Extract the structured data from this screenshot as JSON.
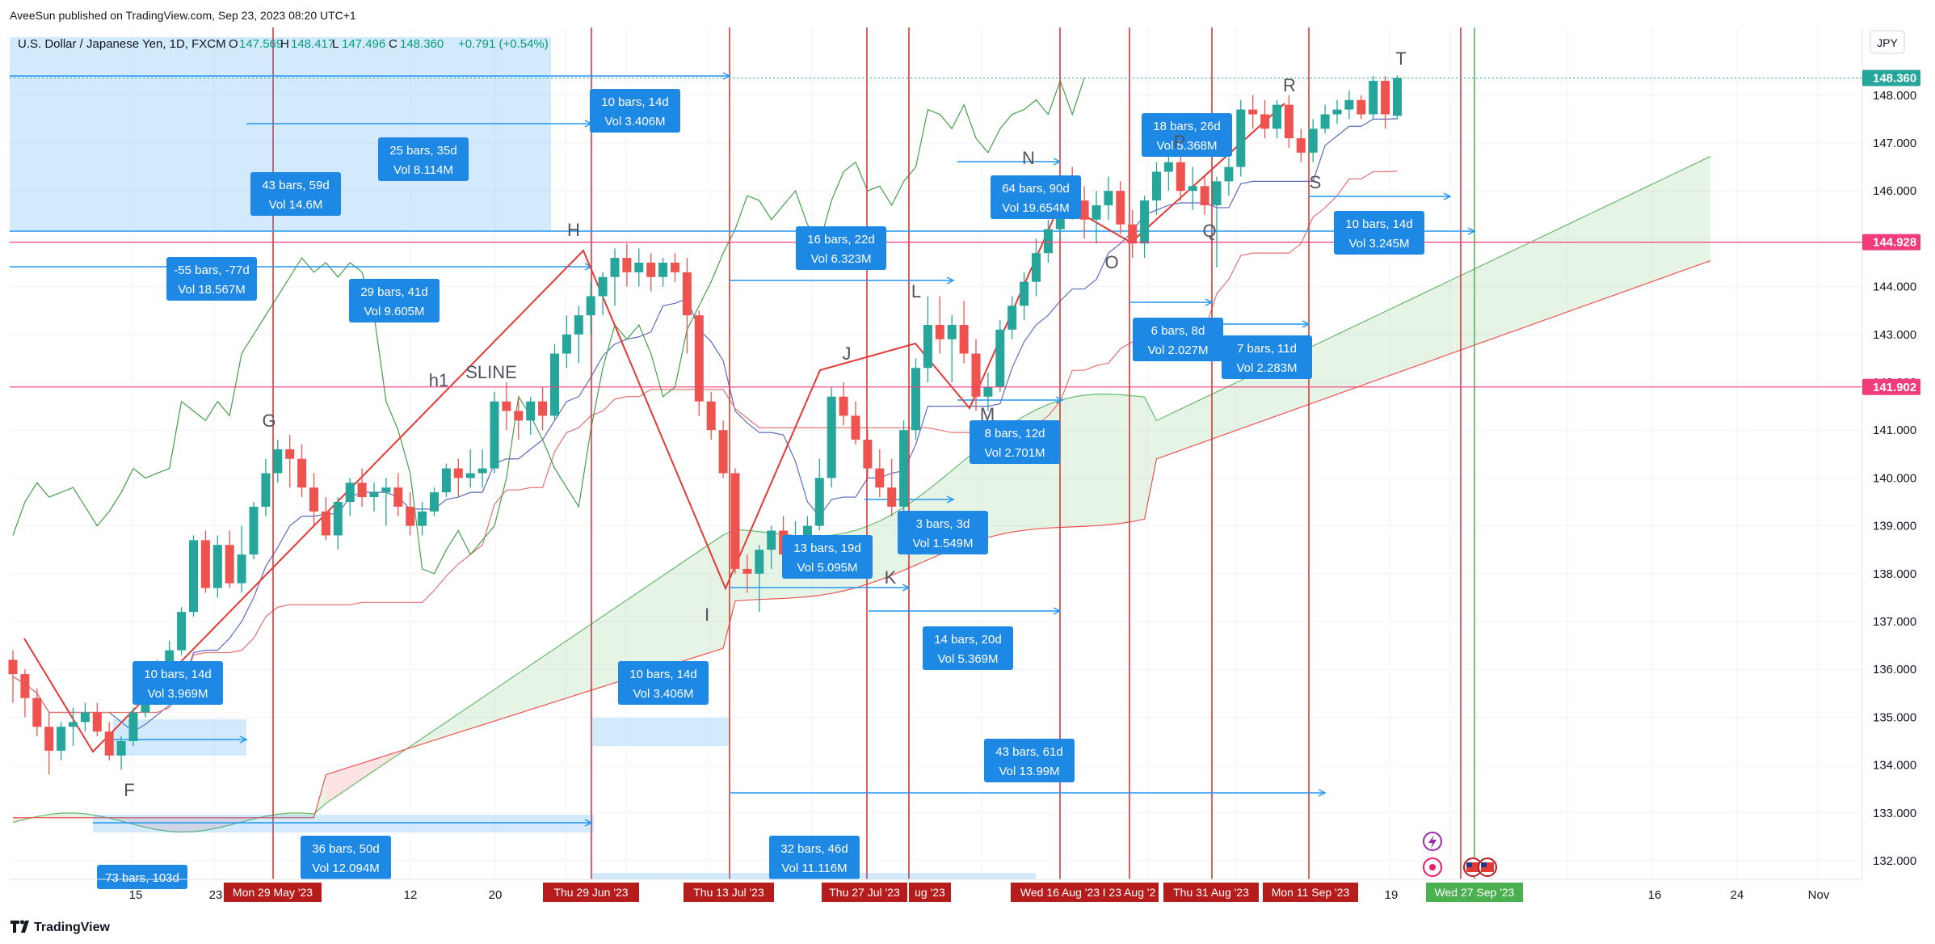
{
  "publisher": "AveeSun published on TradingView.com, Sep 23, 2023 08:20 UTC+1",
  "brand": "TradingView",
  "header": {
    "symbol": "U.S. Dollar / Japanese Yen, 1D, FXCM",
    "o_label": "O",
    "o_value": "147.569",
    "h_label": "H",
    "h_value": "148.417",
    "l_label": "L",
    "l_value": "147.496",
    "c_label": "C",
    "c_value": "148.360",
    "change": "+0.791 (+0.54%)"
  },
  "currency": "JPY",
  "colors": {
    "up": "#26a69a",
    "down": "#ef5350",
    "box": "#2962ff",
    "box_fill": "#1e88e5",
    "pink": "#f23b7a",
    "cloud_green": "#81c784",
    "cloud_red": "#ef9a9a",
    "vline": "#d32f2f",
    "vline_blue": "#3f51b5",
    "today_line": "#4caf50"
  },
  "chart_data": {
    "type": "candlestick",
    "ylim": [
      131.6,
      148.9
    ],
    "y_ticks": [
      "132.000",
      "133.000",
      "134.000",
      "135.000",
      "136.000",
      "137.000",
      "138.000",
      "139.000",
      "140.000",
      "141.000",
      "142.000",
      "143.000",
      "144.000",
      "145.000",
      "146.000",
      "147.000",
      "148.000"
    ],
    "price_badges": [
      {
        "label": "148.360",
        "value": 148.36,
        "color": "#26a69a"
      },
      {
        "label": "144.928",
        "value": 144.928,
        "color": "#f23b7a"
      },
      {
        "label": "141.902",
        "value": 141.902,
        "color": "#f23b7a"
      }
    ],
    "x_ticks": [
      "15",
      "23",
      "12",
      "20",
      "19",
      "16",
      "24",
      "Nov"
    ],
    "x_date_flags": [
      {
        "label": "Mon 29 May '23",
        "color": "#b71c1c"
      },
      {
        "label": "Thu 29 Jun '23",
        "color": "#b71c1c"
      },
      {
        "label": "Thu 13 Jul '23",
        "color": "#b71c1c"
      },
      {
        "label": "Thu 27 Jul '23",
        "color": "#b71c1c"
      },
      {
        "label": "ug '23",
        "color": "#b71c1c"
      },
      {
        "label": "Wed 16 Aug '23",
        "color": "#b71c1c"
      },
      {
        "label": "I 23 Aug '2",
        "color": "#b71c1c"
      },
      {
        "label": "Thu 31 Aug '23",
        "color": "#b71c1c"
      },
      {
        "label": "Mon 11 Sep '23",
        "color": "#b71c1c"
      },
      {
        "label": "Wed 27 Sep '23",
        "color": "#4caf50"
      }
    ],
    "candles": [
      [
        136.2,
        136.4,
        135.3,
        135.9
      ],
      [
        135.9,
        136.0,
        135.0,
        135.4
      ],
      [
        135.4,
        135.6,
        134.6,
        134.8
      ],
      [
        134.8,
        135.1,
        133.8,
        134.3
      ],
      [
        134.3,
        134.9,
        134.1,
        134.8
      ],
      [
        134.8,
        135.2,
        134.4,
        134.9
      ],
      [
        134.9,
        135.3,
        134.7,
        135.1
      ],
      [
        135.1,
        135.3,
        134.6,
        134.7
      ],
      [
        134.7,
        134.9,
        134.1,
        134.2
      ],
      [
        134.2,
        134.6,
        133.9,
        134.5
      ],
      [
        134.5,
        135.2,
        134.4,
        135.1
      ],
      [
        135.1,
        135.9,
        135.0,
        135.7
      ],
      [
        135.7,
        136.2,
        135.5,
        136.1
      ],
      [
        136.1,
        136.6,
        135.9,
        136.4
      ],
      [
        136.4,
        137.3,
        136.3,
        137.2
      ],
      [
        137.2,
        138.8,
        137.1,
        138.7
      ],
      [
        138.7,
        138.9,
        137.6,
        137.7
      ],
      [
        137.7,
        138.8,
        137.5,
        138.6
      ],
      [
        138.6,
        138.9,
        137.7,
        137.8
      ],
      [
        137.8,
        139.0,
        137.6,
        138.4
      ],
      [
        138.4,
        139.5,
        138.3,
        139.4
      ],
      [
        139.4,
        140.4,
        139.2,
        140.1
      ],
      [
        140.1,
        140.8,
        139.9,
        140.6
      ],
      [
        140.6,
        140.9,
        139.8,
        140.4
      ],
      [
        140.4,
        140.7,
        139.6,
        139.8
      ],
      [
        139.8,
        140.1,
        139.0,
        139.3
      ],
      [
        139.3,
        139.6,
        138.7,
        138.8
      ],
      [
        138.8,
        139.6,
        138.5,
        139.5
      ],
      [
        139.5,
        140.0,
        139.2,
        139.9
      ],
      [
        139.9,
        140.2,
        139.4,
        139.6
      ],
      [
        139.6,
        139.9,
        139.3,
        139.7
      ],
      [
        139.7,
        140.0,
        139.0,
        139.8
      ],
      [
        139.8,
        140.1,
        139.2,
        139.4
      ],
      [
        139.4,
        139.7,
        138.8,
        139.0
      ],
      [
        139.0,
        139.5,
        138.8,
        139.3
      ],
      [
        139.3,
        139.8,
        139.2,
        139.7
      ],
      [
        139.7,
        140.3,
        139.6,
        140.2
      ],
      [
        140.2,
        140.4,
        139.6,
        140.0
      ],
      [
        140.0,
        140.6,
        139.8,
        140.1
      ],
      [
        140.1,
        140.6,
        139.8,
        140.2
      ],
      [
        140.2,
        141.8,
        140.1,
        141.6
      ],
      [
        141.6,
        142.0,
        141.0,
        141.4
      ],
      [
        141.4,
        141.7,
        140.8,
        141.2
      ],
      [
        141.2,
        141.7,
        140.9,
        141.6
      ],
      [
        141.6,
        141.9,
        141.0,
        141.3
      ],
      [
        141.3,
        142.8,
        141.2,
        142.6
      ],
      [
        142.6,
        143.4,
        142.3,
        143.0
      ],
      [
        143.0,
        143.6,
        142.4,
        143.4
      ],
      [
        143.4,
        144.1,
        143.0,
        143.8
      ],
      [
        143.8,
        144.3,
        143.4,
        144.2
      ],
      [
        144.2,
        144.8,
        143.6,
        144.6
      ],
      [
        144.6,
        144.9,
        144.0,
        144.3
      ],
      [
        144.3,
        144.8,
        144.0,
        144.5
      ],
      [
        144.5,
        144.7,
        143.9,
        144.2
      ],
      [
        144.2,
        144.6,
        144.0,
        144.5
      ],
      [
        144.5,
        144.7,
        144.1,
        144.3
      ],
      [
        144.3,
        144.6,
        142.6,
        143.4
      ],
      [
        143.4,
        143.5,
        141.3,
        141.6
      ],
      [
        141.6,
        141.8,
        140.8,
        141.0
      ],
      [
        141.0,
        141.2,
        140.0,
        140.1
      ],
      [
        140.1,
        140.2,
        138.0,
        138.1
      ],
      [
        138.1,
        138.4,
        137.6,
        138.0
      ],
      [
        138.0,
        138.6,
        137.2,
        138.5
      ],
      [
        138.5,
        139.0,
        138.1,
        138.9
      ],
      [
        138.9,
        139.2,
        138.0,
        138.4
      ],
      [
        138.4,
        139.1,
        138.2,
        138.7
      ],
      [
        138.7,
        139.2,
        138.3,
        139.0
      ],
      [
        139.0,
        140.4,
        138.9,
        140.0
      ],
      [
        140.0,
        141.9,
        139.8,
        141.7
      ],
      [
        141.7,
        142.0,
        141.1,
        141.3
      ],
      [
        141.3,
        141.6,
        140.7,
        140.8
      ],
      [
        140.8,
        141.0,
        140.0,
        140.2
      ],
      [
        140.2,
        140.6,
        139.6,
        139.8
      ],
      [
        139.8,
        140.4,
        139.2,
        139.4
      ],
      [
        139.4,
        141.2,
        139.3,
        141.0
      ],
      [
        141.0,
        142.5,
        140.8,
        142.3
      ],
      [
        142.3,
        143.8,
        142.0,
        143.2
      ],
      [
        143.2,
        143.8,
        142.6,
        142.9
      ],
      [
        142.9,
        143.4,
        142.0,
        143.2
      ],
      [
        143.2,
        143.7,
        142.4,
        142.6
      ],
      [
        142.6,
        142.9,
        141.4,
        141.7
      ],
      [
        141.7,
        142.2,
        141.4,
        141.9
      ],
      [
        141.9,
        143.3,
        141.8,
        143.1
      ],
      [
        143.1,
        143.8,
        142.9,
        143.6
      ],
      [
        143.6,
        144.3,
        143.3,
        144.1
      ],
      [
        144.1,
        145.0,
        143.8,
        144.7
      ],
      [
        144.7,
        145.4,
        144.5,
        145.2
      ],
      [
        145.2,
        146.0,
        145.0,
        145.9
      ],
      [
        145.9,
        146.5,
        145.4,
        145.8
      ],
      [
        145.8,
        146.1,
        145.0,
        145.4
      ],
      [
        145.4,
        146.0,
        144.9,
        145.7
      ],
      [
        145.7,
        146.3,
        145.4,
        146.0
      ],
      [
        146.0,
        146.2,
        145.1,
        145.3
      ],
      [
        145.3,
        145.6,
        144.6,
        144.9
      ],
      [
        144.9,
        145.9,
        144.6,
        145.8
      ],
      [
        145.8,
        146.6,
        145.5,
        146.4
      ],
      [
        146.4,
        146.8,
        146.0,
        146.6
      ],
      [
        146.6,
        146.9,
        145.8,
        146.0
      ],
      [
        146.0,
        146.5,
        145.6,
        146.1
      ],
      [
        146.1,
        146.3,
        145.5,
        145.7
      ],
      [
        145.7,
        146.3,
        144.4,
        146.2
      ],
      [
        146.2,
        146.7,
        145.9,
        146.5
      ],
      [
        146.5,
        147.9,
        146.3,
        147.7
      ],
      [
        147.7,
        148.0,
        147.3,
        147.6
      ],
      [
        147.6,
        147.9,
        147.1,
        147.3
      ],
      [
        147.3,
        147.9,
        147.1,
        147.8
      ],
      [
        147.8,
        148.0,
        146.9,
        147.1
      ],
      [
        147.1,
        147.3,
        146.6,
        146.8
      ],
      [
        146.8,
        147.5,
        146.6,
        147.3
      ],
      [
        147.3,
        147.8,
        147.2,
        147.6
      ],
      [
        147.6,
        147.9,
        147.4,
        147.7
      ],
      [
        147.7,
        148.1,
        147.5,
        147.9
      ],
      [
        147.9,
        148.0,
        147.5,
        147.6
      ],
      [
        147.6,
        148.4,
        147.5,
        148.3
      ],
      [
        148.3,
        148.4,
        147.3,
        147.6
      ],
      [
        147.569,
        148.417,
        147.496,
        148.36
      ]
    ],
    "wave_labels": [
      "F",
      "G",
      "h1",
      "SLINE",
      "H",
      "I",
      "J",
      "K",
      "L",
      "M",
      "N",
      "O",
      "P",
      "Q",
      "R",
      "S",
      "T"
    ],
    "measure_boxes": [
      {
        "bars": "73 bars, 103d",
        "vol": ""
      },
      {
        "bars": "36 bars, 50d",
        "vol": "Vol 12.094M"
      },
      {
        "bars": "10 bars, 14d",
        "vol": "Vol 3.969M"
      },
      {
        "bars": "-55 bars, -77d",
        "vol": "Vol 18.567M"
      },
      {
        "bars": "43 bars, 59d",
        "vol": "Vol 14.6M"
      },
      {
        "bars": "25 bars, 35d",
        "vol": "Vol 8.114M"
      },
      {
        "bars": "29 bars, 41d",
        "vol": "Vol 9.605M"
      },
      {
        "bars": "10 bars, 14d",
        "vol": "Vol 3.406M"
      },
      {
        "bars": "10 bars, 14d",
        "vol": "Vol 3.406M"
      },
      {
        "bars": "32 bars, 46d",
        "vol": "Vol 11.116M"
      },
      {
        "bars": "16 bars, 22d",
        "vol": "Vol 6.323M"
      },
      {
        "bars": "13 bars, 19d",
        "vol": "Vol 5.095M"
      },
      {
        "bars": "3 bars, 3d",
        "vol": "Vol 1.549M"
      },
      {
        "bars": "14 bars, 20d",
        "vol": "Vol 5.369M"
      },
      {
        "bars": "43 bars, 61d",
        "vol": "Vol 13.99M"
      },
      {
        "bars": "8 bars, 12d",
        "vol": "Vol 2.701M"
      },
      {
        "bars": "64 bars, 90d",
        "vol": "Vol 19.654M"
      },
      {
        "bars": "6 bars, 8d",
        "vol": "Vol 2.027M"
      },
      {
        "bars": "7 bars, 11d",
        "vol": "Vol 2.283M"
      },
      {
        "bars": "18 bars, 26d",
        "vol": "Vol 5.368M"
      },
      {
        "bars": "10 bars, 14d",
        "vol": "Vol 3.245M"
      }
    ]
  }
}
